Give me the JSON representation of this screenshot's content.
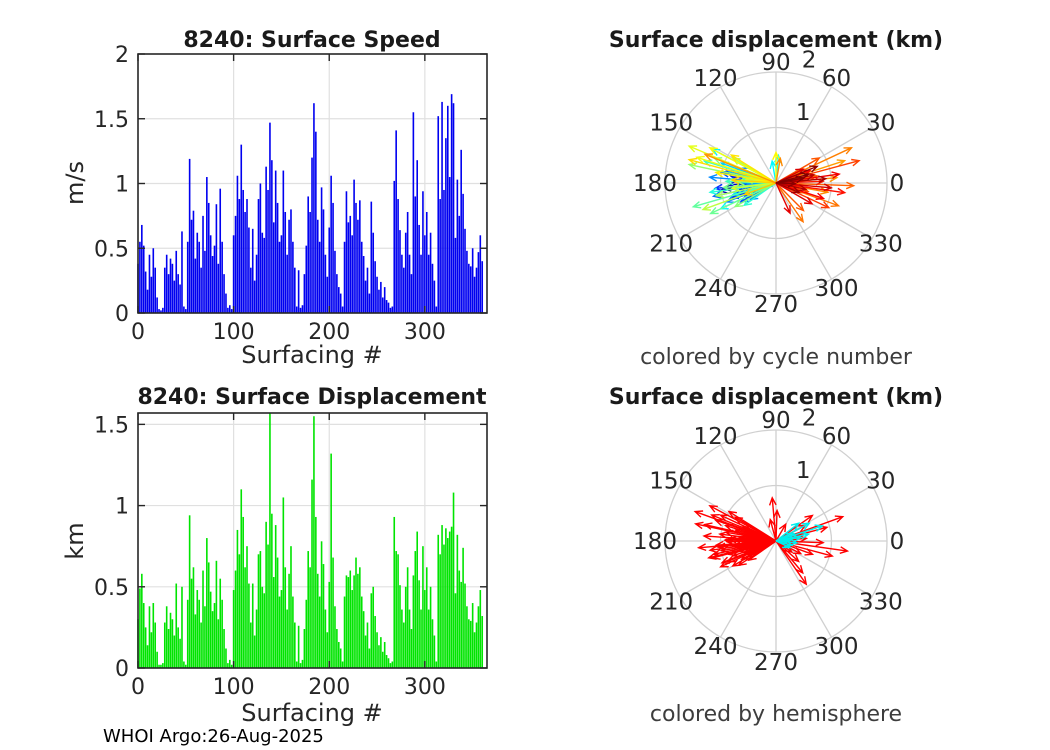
{
  "figure": {
    "footer": "WHOI Argo:26-Aug-2025",
    "background": "#ffffff",
    "axes_color": "#262626",
    "grid_color": "#e0e0e0",
    "polar_grid_color": "#d0d0d0",
    "caption_color": "#3d3d3d"
  },
  "chart_data": [
    {
      "id": "surface-speed",
      "type": "bar",
      "title": "8240: Surface Speed",
      "xlabel": "Surfacing #",
      "ylabel": "m/s",
      "bar_color": "#0000f0",
      "xlim": [
        0,
        365
      ],
      "ylim": [
        0,
        2
      ],
      "xticks": [
        0,
        100,
        200,
        300
      ],
      "yticks": [
        0,
        0.5,
        1,
        1.5,
        2
      ],
      "grid": true,
      "x_start": 0,
      "x_step": 2,
      "values": [
        0.38,
        0.55,
        0.68,
        0.52,
        0.32,
        0.18,
        0.45,
        0.28,
        0.5,
        0.35,
        0.12,
        0.03,
        0.02,
        0.04,
        0.35,
        0.45,
        0.3,
        0.42,
        0.38,
        0.25,
        0.48,
        0.3,
        0.22,
        0.63,
        0.05,
        0.03,
        0.55,
        1.19,
        0.72,
        0.79,
        0.42,
        0.62,
        0.55,
        0.35,
        0.75,
        0.48,
        1.05,
        0.85,
        0.6,
        0.44,
        0.52,
        0.84,
        0.38,
        0.96,
        0.55,
        0.3,
        0.15,
        0.04,
        0.06,
        0.03,
        0.6,
        0.75,
        1.06,
        0.88,
        1.3,
        0.95,
        0.78,
        0.88,
        0.66,
        0.35,
        0.65,
        0.25,
        0.45,
        0.88,
        1.0,
        0.62,
        0.58,
        1.13,
        0.95,
        1.47,
        1.18,
        0.7,
        1.1,
        0.85,
        0.55,
        0.6,
        1.1,
        0.78,
        0.45,
        0.72,
        0.8,
        0.55,
        0.35,
        0.05,
        0.33,
        0.04,
        0.06,
        0.3,
        0.52,
        0.9,
        0.78,
        1.2,
        1.62,
        1.4,
        0.72,
        0.55,
        0.97,
        0.8,
        0.45,
        0.28,
        0.66,
        1.06,
        0.85,
        0.48,
        0.3,
        0.2,
        0.15,
        0.05,
        0.55,
        0.94,
        0.7,
        0.75,
        0.6,
        1.03,
        0.85,
        0.72,
        0.87,
        0.55,
        0.44,
        0.25,
        0.35,
        0.15,
        0.86,
        0.62,
        0.4,
        0.28,
        0.18,
        0.24,
        0.12,
        0.2,
        0.1,
        0.08,
        0.04,
        0.05,
        1.02,
        1.41,
        0.88,
        0.64,
        0.45,
        0.35,
        0.62,
        0.78,
        0.45,
        0.3,
        1.55,
        0.9,
        1.18,
        0.68,
        0.45,
        0.94,
        0.6,
        0.78,
        0.45,
        0.62,
        0.38,
        0.25,
        0.05,
        1.52,
        0.88,
        1.63,
        0.95,
        1.35,
        1.6,
        1.05,
        1.69,
        1.62,
        0.58,
        1.03,
        0.75,
        1.26,
        0.92,
        0.65,
        0.48,
        0.38,
        0.36,
        0.5,
        0.28,
        0.35,
        0.47,
        0.6,
        0.4
      ]
    },
    {
      "id": "polar-cycle",
      "type": "scatter",
      "projection": "polar",
      "mark": "arrows-from-origin",
      "title": "Surface displacement (km)",
      "caption": "colored by cycle number",
      "colormap": "jet",
      "theta_ticks_deg": [
        0,
        30,
        60,
        90,
        120,
        150,
        180,
        210,
        240,
        270,
        300,
        330
      ],
      "r_ticks": [
        1,
        2
      ],
      "rlim": [
        0,
        2
      ],
      "arrows_deg_r_t": [
        [
          186,
          0.95,
          0.0
        ],
        [
          178,
          0.72,
          0.01
        ],
        [
          195,
          0.55,
          0.02
        ],
        [
          170,
          0.62,
          0.03
        ],
        [
          188,
          1.02,
          0.04
        ],
        [
          175,
          0.25,
          0.05
        ],
        [
          200,
          0.48,
          0.05
        ],
        [
          182,
          0.85,
          0.06
        ],
        [
          174,
          0.4,
          0.07
        ],
        [
          185,
          0.2,
          0.08
        ],
        [
          191,
          0.68,
          0.08
        ],
        [
          168,
          0.92,
          0.09
        ],
        [
          184,
          0.3,
          0.1
        ],
        [
          192,
          0.35,
          0.1
        ],
        [
          196,
          0.78,
          0.11
        ],
        [
          179,
          0.55,
          0.12
        ],
        [
          180,
          0.3,
          0.12
        ],
        [
          205,
          0.62,
          0.13
        ],
        [
          172,
          0.8,
          0.14
        ],
        [
          190,
          0.45,
          0.15
        ],
        [
          162,
          0.75,
          0.16
        ],
        [
          185,
          1.1,
          0.17
        ],
        [
          198,
          0.85,
          0.18
        ],
        [
          176,
          0.6,
          0.19
        ],
        [
          208,
          0.72,
          0.2
        ],
        [
          169,
          1.0,
          0.21
        ],
        [
          183,
          0.52,
          0.22
        ],
        [
          192,
          1.15,
          0.23
        ],
        [
          157,
          0.68,
          0.24
        ],
        [
          201,
          0.95,
          0.25
        ],
        [
          175,
          1.2,
          0.26
        ],
        [
          188,
          0.78,
          0.27
        ],
        [
          213,
          0.55,
          0.28
        ],
        [
          166,
          0.88,
          0.29
        ],
        [
          180,
          0.65,
          0.31
        ],
        [
          160,
          1.05,
          0.33
        ],
        [
          195,
          0.8,
          0.35
        ],
        [
          152,
          1.3,
          0.36
        ],
        [
          100,
          0.4,
          0.37
        ],
        [
          205,
          1.1,
          0.38
        ],
        [
          172,
          0.6,
          0.39
        ],
        [
          85,
          0.5,
          0.4
        ],
        [
          188,
          1.2,
          0.41
        ],
        [
          215,
          0.7,
          0.42
        ],
        [
          163,
          1.35,
          0.43
        ],
        [
          178,
          0.9,
          0.44
        ],
        [
          198,
          0.55,
          0.45
        ],
        [
          196,
          1.55,
          0.47
        ],
        [
          205,
          1.3,
          0.48
        ],
        [
          185,
          0.95,
          0.49
        ],
        [
          158,
          1.2,
          0.5
        ],
        [
          210,
          0.85,
          0.51
        ],
        [
          168,
          1.6,
          0.52
        ],
        [
          178,
          0.7,
          0.53
        ],
        [
          192,
          1.1,
          0.54
        ],
        [
          150,
          0.9,
          0.55
        ],
        [
          200,
          1.4,
          0.56
        ],
        [
          173,
          0.55,
          0.57
        ],
        [
          187,
          0.8,
          0.58
        ],
        [
          157,
          1.7,
          0.6
        ],
        [
          162,
          1.5,
          0.61
        ],
        [
          152,
          1.35,
          0.62
        ],
        [
          90,
          0.55,
          0.63
        ],
        [
          170,
          1.1,
          0.64
        ],
        [
          148,
          0.95,
          0.65
        ],
        [
          165,
          1.62,
          0.66
        ],
        [
          176,
          0.8,
          0.67
        ],
        [
          200,
          0.6,
          0.68
        ],
        [
          18,
          1.3,
          0.72
        ],
        [
          5,
          1.1,
          0.73
        ],
        [
          158,
          1.38,
          0.73
        ],
        [
          80,
          0.45,
          0.74
        ],
        [
          350,
          0.95,
          0.74
        ],
        [
          25,
          1.5,
          0.75
        ],
        [
          340,
          1.2,
          0.76
        ],
        [
          305,
          0.85,
          0.76
        ],
        [
          10,
          0.75,
          0.77
        ],
        [
          358,
          1.4,
          0.78
        ],
        [
          315,
          0.7,
          0.79
        ],
        [
          30,
          0.9,
          0.79
        ],
        [
          345,
          0.6,
          0.8
        ],
        [
          15,
          1.55,
          0.81
        ],
        [
          335,
          1.05,
          0.82
        ],
        [
          2,
          0.85,
          0.85
        ],
        [
          352,
          1.25,
          0.86
        ],
        [
          20,
          0.65,
          0.87
        ],
        [
          342,
          0.9,
          0.88
        ],
        [
          8,
          1.15,
          0.89
        ],
        [
          295,
          0.6,
          0.9
        ],
        [
          330,
          0.75,
          0.9
        ],
        [
          27,
          0.55,
          0.91
        ],
        [
          355,
          1.0,
          0.92
        ],
        [
          12,
          0.7,
          0.94
        ],
        [
          348,
          0.55,
          0.95
        ],
        [
          5,
          0.9,
          0.96
        ],
        [
          338,
          0.45,
          0.97
        ],
        [
          22,
          0.8,
          0.98
        ],
        [
          358,
          0.35,
          0.99
        ],
        [
          10,
          0.5,
          1.0
        ],
        [
          15,
          0.6,
          1.0
        ]
      ]
    },
    {
      "id": "surface-displacement",
      "type": "bar",
      "title": "8240: Surface Displacement",
      "xlabel": "Surfacing #",
      "ylabel": "km",
      "bar_color": "#00e400",
      "xlim": [
        0,
        365
      ],
      "ylim": [
        0,
        1.57
      ],
      "xticks": [
        0,
        100,
        200,
        300
      ],
      "yticks": [
        0,
        0.5,
        1,
        1.5
      ],
      "grid": true,
      "x_start": 0,
      "x_step": 2,
      "values": [
        0.3,
        0.49,
        0.58,
        0.4,
        0.25,
        0.14,
        0.38,
        0.22,
        0.4,
        0.28,
        0.1,
        0.02,
        0.02,
        0.03,
        0.28,
        0.38,
        0.24,
        0.34,
        0.3,
        0.2,
        0.52,
        0.25,
        0.18,
        0.5,
        0.04,
        0.02,
        0.42,
        0.94,
        0.55,
        0.62,
        0.33,
        0.48,
        0.42,
        0.28,
        0.6,
        0.38,
        0.8,
        0.65,
        0.47,
        0.35,
        0.4,
        0.66,
        0.3,
        0.55,
        0.42,
        0.24,
        0.12,
        0.03,
        0.05,
        0.02,
        0.48,
        0.6,
        0.85,
        0.7,
        1.1,
        0.93,
        0.62,
        0.75,
        0.52,
        0.28,
        0.52,
        0.2,
        0.36,
        0.7,
        0.72,
        0.5,
        0.46,
        0.9,
        0.76,
        1.57,
        0.95,
        0.56,
        0.88,
        0.68,
        0.44,
        0.48,
        1.05,
        0.62,
        0.36,
        0.58,
        0.75,
        0.44,
        0.28,
        0.04,
        0.26,
        0.03,
        0.05,
        0.24,
        0.42,
        0.72,
        0.62,
        1.16,
        1.55,
        0.93,
        0.58,
        0.44,
        0.78,
        0.64,
        0.36,
        0.22,
        0.53,
        1.32,
        0.68,
        0.38,
        0.24,
        0.16,
        0.12,
        0.04,
        0.44,
        0.57,
        0.56,
        0.6,
        0.48,
        0.57,
        0.68,
        0.58,
        0.62,
        0.44,
        0.35,
        0.2,
        0.28,
        0.12,
        0.46,
        0.5,
        0.32,
        0.22,
        0.14,
        0.19,
        0.1,
        0.16,
        0.08,
        0.06,
        0.03,
        0.04,
        0.93,
        0.72,
        0.7,
        0.51,
        0.36,
        0.28,
        0.5,
        0.62,
        0.36,
        0.24,
        0.57,
        0.72,
        0.84,
        0.54,
        0.36,
        0.75,
        0.48,
        0.62,
        0.36,
        0.5,
        0.3,
        0.2,
        0.04,
        0.82,
        0.7,
        0.88,
        0.76,
        0.86,
        0.8,
        0.84,
        0.87,
        1.08,
        0.46,
        0.82,
        0.6,
        0.53,
        0.74,
        0.52,
        0.38,
        0.3,
        0.29,
        0.4,
        0.22,
        0.28,
        0.38,
        0.48,
        0.32
      ]
    },
    {
      "id": "polar-hemisphere",
      "type": "scatter",
      "projection": "polar",
      "mark": "arrows-from-origin",
      "title": "Surface displacement (km)",
      "caption": "colored by hemisphere",
      "colors": {
        "n": "#ff0000",
        "s": "#00eeee"
      },
      "theta_ticks_deg": [
        0,
        30,
        60,
        90,
        120,
        150,
        180,
        210,
        240,
        270,
        300,
        330
      ],
      "r_ticks": [
        1,
        2
      ],
      "rlim": [
        0,
        2
      ],
      "arrows_deg_r_h": [
        [
          186,
          1.05,
          "n"
        ],
        [
          178,
          0.85,
          "n"
        ],
        [
          195,
          0.7,
          "n"
        ],
        [
          170,
          0.92,
          "n"
        ],
        [
          160,
          1.55,
          "n"
        ],
        [
          188,
          1.2,
          "n"
        ],
        [
          200,
          0.6,
          "n"
        ],
        [
          152,
          1.35,
          "n"
        ],
        [
          205,
          1.1,
          "n"
        ],
        [
          182,
          0.45,
          "n"
        ],
        [
          168,
          1.48,
          "n"
        ],
        [
          213,
          0.8,
          "n"
        ],
        [
          175,
          0.65,
          "n"
        ],
        [
          190,
          1.0,
          "n"
        ],
        [
          158,
          1.25,
          "n"
        ],
        [
          196,
          0.88,
          "n"
        ],
        [
          172,
          0.55,
          "n"
        ],
        [
          185,
          1.4,
          "n"
        ],
        [
          203,
          0.95,
          "n"
        ],
        [
          165,
          0.75,
          "n"
        ],
        [
          180,
          0.35,
          "n"
        ],
        [
          192,
          1.15,
          "n"
        ],
        [
          155,
          1.1,
          "n"
        ],
        [
          208,
          0.7,
          "n"
        ],
        [
          176,
          1.3,
          "n"
        ],
        [
          198,
          0.5,
          "n"
        ],
        [
          163,
          0.95,
          "n"
        ],
        [
          187,
          0.78,
          "n"
        ],
        [
          215,
          0.6,
          "n"
        ],
        [
          150,
          0.85,
          "n"
        ],
        [
          184,
          1.08,
          "n"
        ],
        [
          171,
          0.42,
          "n"
        ],
        [
          194,
          1.25,
          "n"
        ],
        [
          179,
          0.92,
          "n"
        ],
        [
          206,
          0.55,
          "n"
        ],
        [
          161,
          1.15,
          "n"
        ],
        [
          189,
          0.68,
          "n"
        ],
        [
          173,
          1.02,
          "n"
        ],
        [
          199,
          0.82,
          "n"
        ],
        [
          148,
          1.0,
          "n"
        ],
        [
          183,
          0.58,
          "n"
        ],
        [
          210,
          0.9,
          "n"
        ],
        [
          167,
          1.32,
          "n"
        ],
        [
          177,
          0.72,
          "n"
        ],
        [
          191,
          0.48,
          "n"
        ],
        [
          202,
          1.05,
          "n"
        ],
        [
          157,
          0.65,
          "n"
        ],
        [
          186,
          0.3,
          "n"
        ],
        [
          195,
          1.18,
          "n"
        ],
        [
          181,
          0.88,
          "n"
        ],
        [
          352,
          1.3,
          "n"
        ],
        [
          20,
          1.28,
          "n"
        ],
        [
          15,
          0.95,
          "n"
        ],
        [
          340,
          0.7,
          "n"
        ],
        [
          5,
          0.55,
          "n"
        ],
        [
          358,
          0.85,
          "n"
        ],
        [
          28,
          0.6,
          "n"
        ],
        [
          333,
          0.5,
          "n"
        ],
        [
          310,
          0.75,
          "n"
        ],
        [
          318,
          0.55,
          "n"
        ],
        [
          345,
          1.05,
          "n"
        ],
        [
          10,
          0.4,
          "n"
        ],
        [
          35,
          0.8,
          "n"
        ],
        [
          325,
          0.35,
          "n"
        ],
        [
          305,
          0.95,
          "n"
        ],
        [
          95,
          0.78,
          "n"
        ],
        [
          88,
          0.55,
          "n"
        ],
        [
          105,
          0.4,
          "n"
        ],
        [
          60,
          0.35,
          "n"
        ],
        [
          18,
          0.88,
          "s"
        ],
        [
          28,
          0.68,
          "s"
        ],
        [
          38,
          0.52,
          "s"
        ],
        [
          8,
          0.45,
          "s"
        ],
        [
          355,
          0.38,
          "s"
        ],
        [
          345,
          0.3,
          "s"
        ],
        [
          335,
          0.28,
          "s"
        ],
        [
          12,
          0.6,
          "s"
        ],
        [
          22,
          0.35,
          "s"
        ],
        [
          2,
          0.25,
          "s"
        ]
      ]
    }
  ]
}
